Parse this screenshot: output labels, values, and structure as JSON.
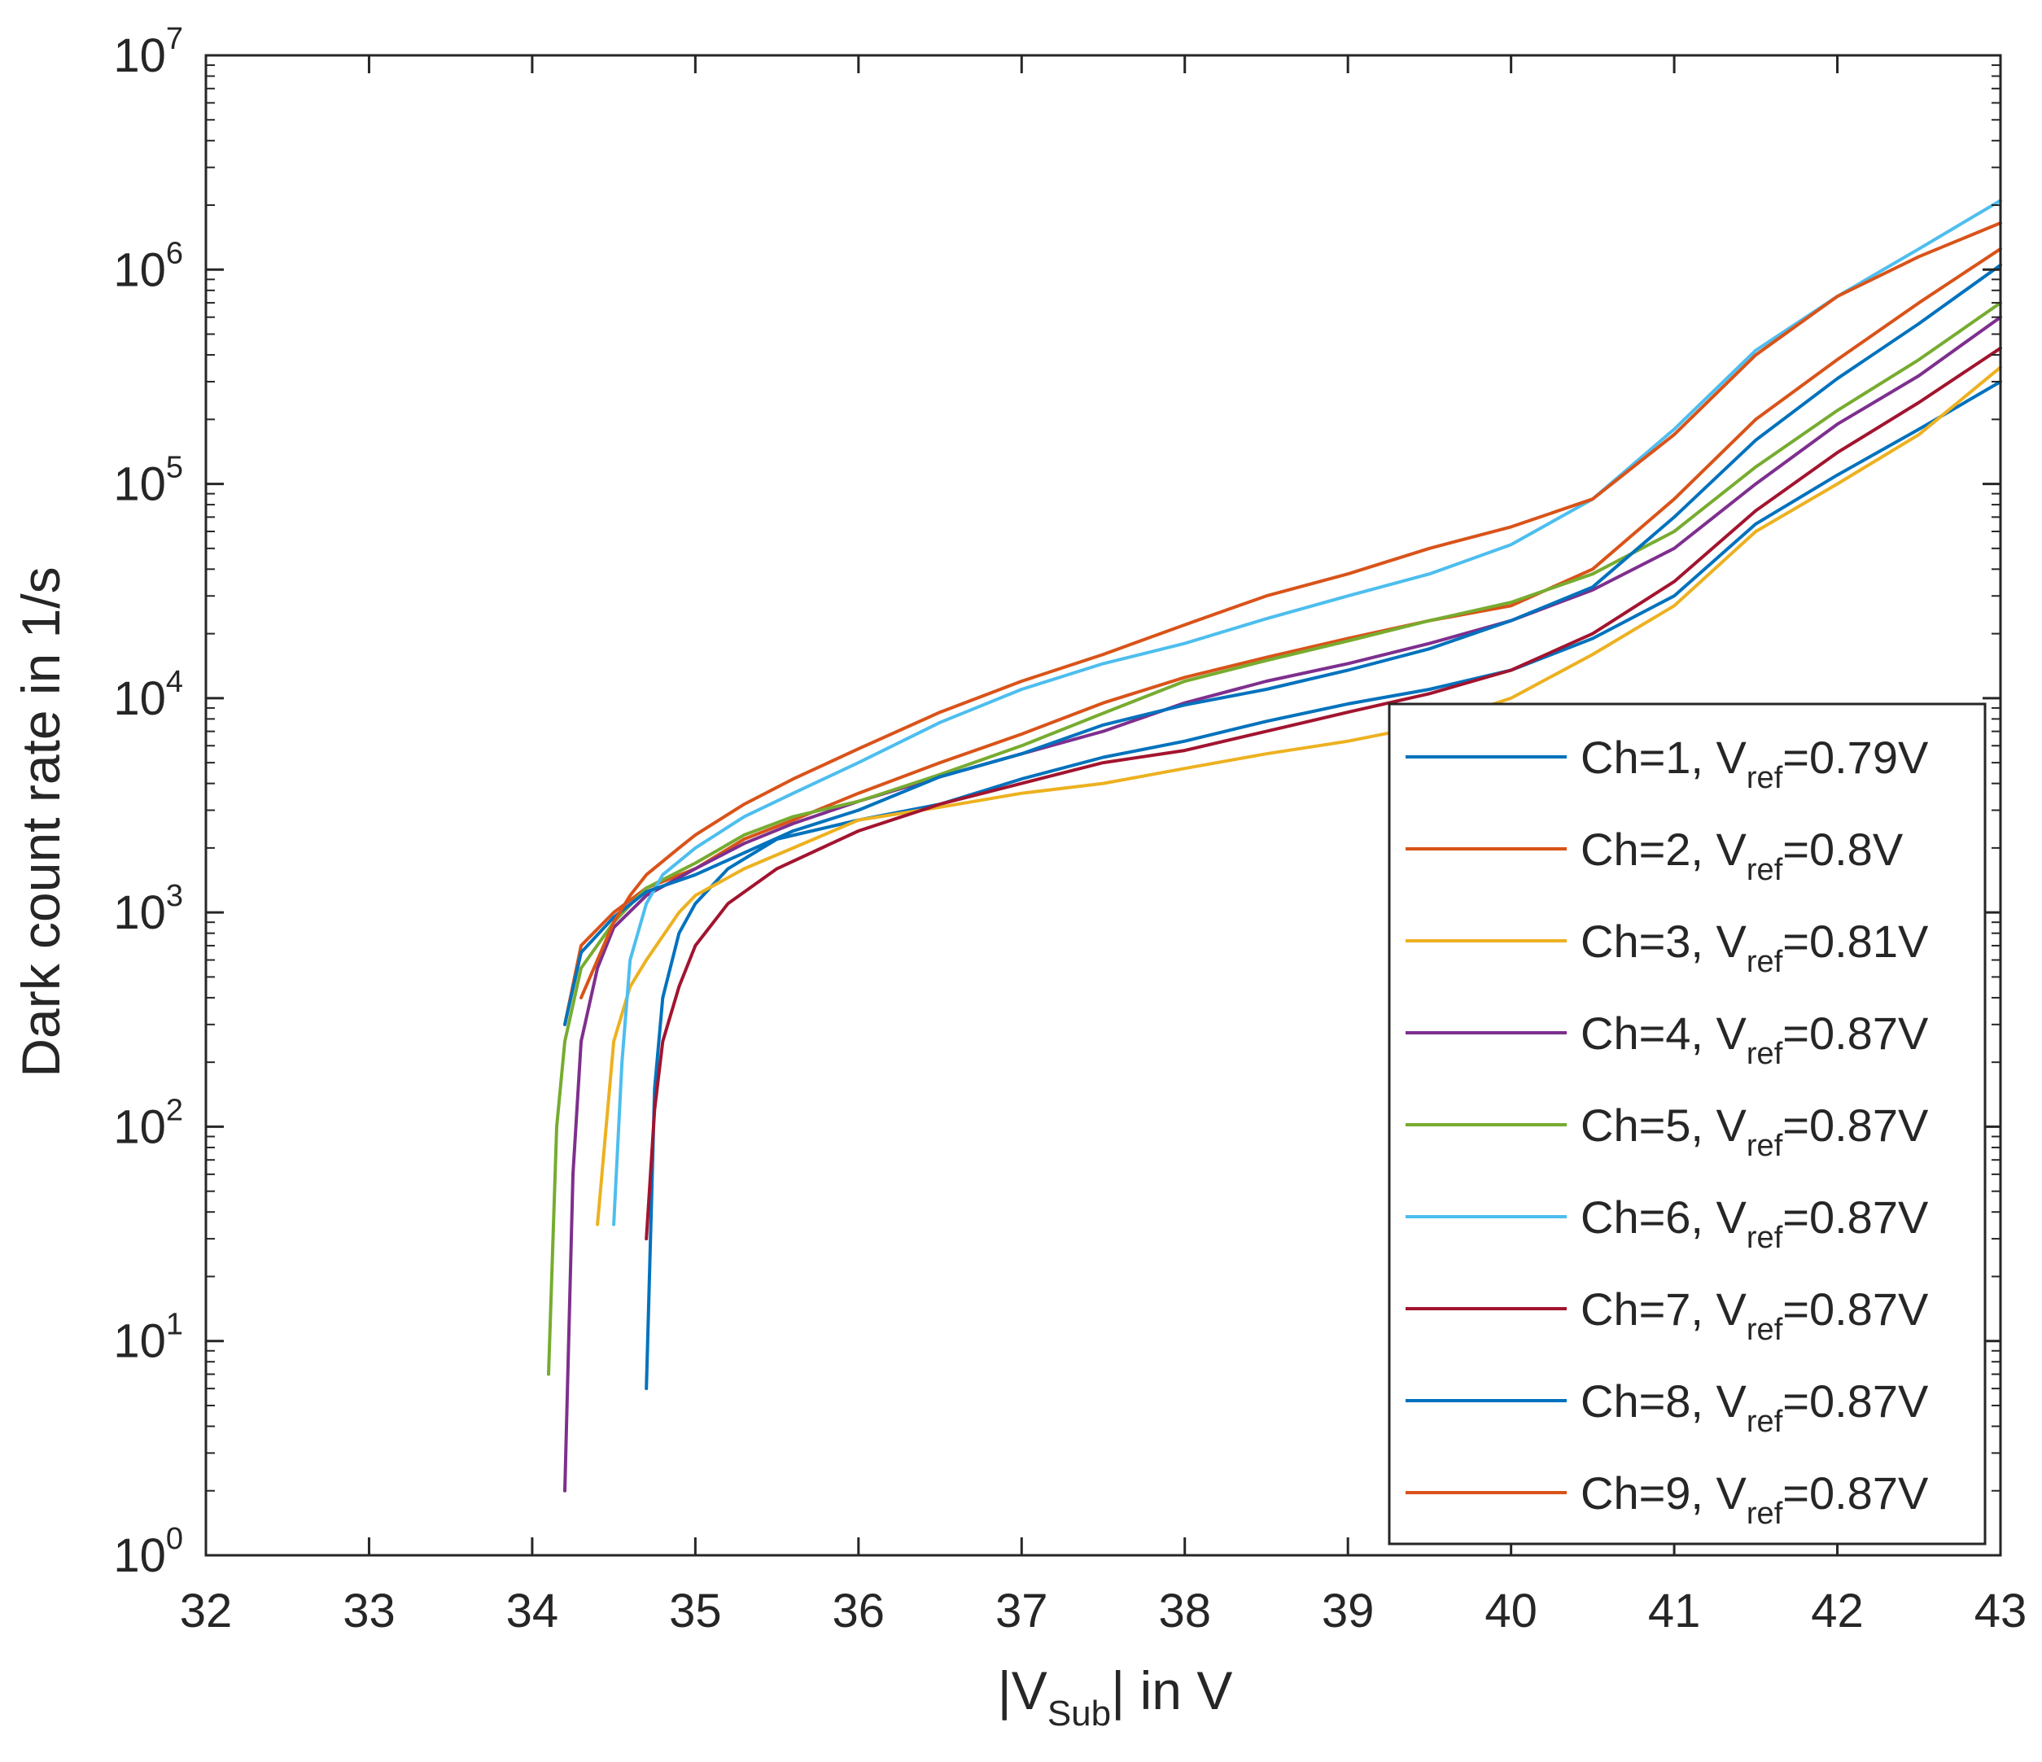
{
  "chart_data": {
    "type": "line",
    "title": "",
    "xlabel": {
      "prefix": "|V",
      "sub": "Sub",
      "suffix": "| in V"
    },
    "ylabel": "Dark count rate in 1/s",
    "xlim": [
      32,
      43
    ],
    "ylim": [
      1,
      10000000
    ],
    "yscale": "log",
    "x_ticks": [
      32,
      33,
      34,
      35,
      36,
      37,
      38,
      39,
      40,
      41,
      42,
      43
    ],
    "y_ticks": [
      {
        "value": 1,
        "base": "10",
        "exp": "0"
      },
      {
        "value": 10,
        "base": "10",
        "exp": "1"
      },
      {
        "value": 100,
        "base": "10",
        "exp": "2"
      },
      {
        "value": 1000,
        "base": "10",
        "exp": "3"
      },
      {
        "value": 10000,
        "base": "10",
        "exp": "4"
      },
      {
        "value": 100000,
        "base": "10",
        "exp": "5"
      },
      {
        "value": 1000000,
        "base": "10",
        "exp": "6"
      },
      {
        "value": 10000000,
        "base": "10",
        "exp": "7"
      }
    ],
    "grid": false,
    "legend_position": "bottom-right",
    "series": [
      {
        "name": "Ch=1",
        "legend_prefix": "Ch=1, V",
        "legend_sub": "ref",
        "legend_suffix": "=0.79V",
        "color": "#0072BD",
        "x": [
          34.7,
          34.75,
          34.8,
          34.9,
          35.0,
          35.2,
          35.5,
          36.0,
          36.5,
          37.0,
          37.5,
          38.0,
          38.5,
          39.0,
          39.5,
          40.0,
          40.5,
          41.0,
          41.5,
          42.0,
          42.5,
          43.0
        ],
        "y": [
          6,
          150,
          400,
          800,
          1100,
          1600,
          2200,
          2700,
          3200,
          4200,
          5300,
          6300,
          7800,
          9400,
          11000,
          13500,
          19000,
          30000,
          65000,
          110000,
          180000,
          300000
        ]
      },
      {
        "name": "Ch=2",
        "legend_prefix": "Ch=2, V",
        "legend_sub": "ref",
        "legend_suffix": "=0.8V",
        "color": "#D95319",
        "x": [
          34.2,
          34.3,
          34.5,
          34.7,
          35.0,
          35.3,
          35.6,
          36.0,
          36.5,
          37.0,
          37.5,
          38.0,
          38.5,
          39.0,
          39.5,
          40.0,
          40.5,
          41.0,
          41.5,
          42.0,
          42.5,
          43.0
        ],
        "y": [
          300,
          700,
          1000,
          1300,
          1600,
          2200,
          2700,
          3600,
          5000,
          6800,
          9500,
          12500,
          15500,
          19000,
          23000,
          27000,
          40000,
          85000,
          200000,
          380000,
          700000,
          1250000
        ]
      },
      {
        "name": "Ch=3",
        "legend_prefix": "Ch=3, V",
        "legend_sub": "ref",
        "legend_suffix": "=0.81V",
        "color": "#EDB120",
        "x": [
          34.4,
          34.5,
          34.6,
          34.7,
          34.9,
          35.0,
          35.3,
          35.6,
          36.0,
          36.5,
          37.0,
          37.5,
          38.0,
          38.5,
          39.0,
          39.5,
          40.0,
          40.5,
          41.0,
          41.5,
          42.0,
          42.5,
          43.0
        ],
        "y": [
          35,
          250,
          450,
          600,
          1000,
          1200,
          1600,
          2000,
          2700,
          3100,
          3600,
          4000,
          4700,
          5500,
          6300,
          7500,
          10000,
          16000,
          27000,
          60000,
          100000,
          170000,
          350000
        ]
      },
      {
        "name": "Ch=4",
        "legend_prefix": "Ch=4, V",
        "legend_sub": "ref",
        "legend_suffix": "=0.87V",
        "color": "#7E2F8E",
        "x": [
          34.2,
          34.25,
          34.3,
          34.4,
          34.5,
          34.7,
          35.0,
          35.3,
          35.6,
          36.0,
          36.5,
          37.0,
          37.5,
          38.0,
          38.5,
          39.0,
          39.5,
          40.0,
          40.5,
          41.0,
          41.5,
          42.0,
          42.5,
          43.0
        ],
        "y": [
          2,
          60,
          250,
          550,
          850,
          1200,
          1600,
          2100,
          2600,
          3300,
          4300,
          5500,
          7000,
          9500,
          12000,
          14500,
          18000,
          23000,
          32000,
          50000,
          100000,
          190000,
          320000,
          600000
        ]
      },
      {
        "name": "Ch=5",
        "legend_prefix": "Ch=5, V",
        "legend_sub": "ref",
        "legend_suffix": "=0.87V",
        "color": "#77AC30",
        "x": [
          34.1,
          34.15,
          34.2,
          34.3,
          34.5,
          34.7,
          35.0,
          35.3,
          35.6,
          36.0,
          36.5,
          37.0,
          37.5,
          38.0,
          38.5,
          39.0,
          39.5,
          40.0,
          40.5,
          41.0,
          41.5,
          42.0,
          42.5,
          43.0
        ],
        "y": [
          7,
          100,
          250,
          550,
          900,
          1300,
          1700,
          2300,
          2800,
          3300,
          4400,
          6000,
          8500,
          12000,
          15000,
          18500,
          23000,
          28000,
          38000,
          60000,
          120000,
          220000,
          380000,
          700000
        ]
      },
      {
        "name": "Ch=6",
        "legend_prefix": "Ch=6, V",
        "legend_sub": "ref",
        "legend_suffix": "=0.87V",
        "color": "#4DBEEE",
        "x": [
          34.5,
          34.55,
          34.6,
          34.7,
          34.8,
          35.0,
          35.3,
          35.6,
          36.0,
          36.5,
          37.0,
          37.5,
          38.0,
          38.5,
          39.0,
          39.5,
          40.0,
          40.5,
          41.0,
          41.5,
          42.0,
          42.5,
          43.0
        ],
        "y": [
          35,
          200,
          600,
          1100,
          1500,
          2000,
          2800,
          3600,
          5000,
          7700,
          11000,
          14500,
          18000,
          23500,
          30000,
          38000,
          52000,
          85000,
          180000,
          420000,
          750000,
          1250000,
          2100000
        ]
      },
      {
        "name": "Ch=7",
        "legend_prefix": "Ch=7, V",
        "legend_sub": "ref",
        "legend_suffix": "=0.87V",
        "color": "#A2142F",
        "x": [
          34.7,
          34.75,
          34.8,
          34.9,
          35.0,
          35.2,
          35.5,
          36.0,
          36.5,
          37.0,
          37.5,
          38.0,
          38.5,
          39.0,
          39.5,
          40.0,
          40.5,
          41.0,
          41.5,
          42.0,
          42.5,
          43.0
        ],
        "y": [
          30,
          120,
          250,
          450,
          700,
          1100,
          1600,
          2400,
          3200,
          4000,
          5000,
          5700,
          7000,
          8600,
          10500,
          13500,
          20000,
          35000,
          75000,
          140000,
          240000,
          430000
        ]
      },
      {
        "name": "Ch=8",
        "legend_prefix": "Ch=8, V",
        "legend_sub": "ref",
        "legend_suffix": "=0.87V",
        "color": "#0072BD",
        "x": [
          34.2,
          34.3,
          34.5,
          34.7,
          35.0,
          35.3,
          35.6,
          36.0,
          36.5,
          37.0,
          37.5,
          38.0,
          38.5,
          39.0,
          39.5,
          40.0,
          40.5,
          41.0,
          41.5,
          42.0,
          42.5,
          43.0
        ],
        "y": [
          300,
          650,
          950,
          1250,
          1500,
          1900,
          2400,
          3000,
          4300,
          5500,
          7500,
          9300,
          11000,
          13500,
          17000,
          23000,
          33000,
          70000,
          160000,
          310000,
          560000,
          1050000
        ]
      },
      {
        "name": "Ch=9",
        "legend_prefix": "Ch=9, V",
        "legend_sub": "ref",
        "legend_suffix": "=0.87V",
        "color": "#D95319",
        "x": [
          34.3,
          34.4,
          34.5,
          34.6,
          34.7,
          34.9,
          35.0,
          35.3,
          35.6,
          36.0,
          36.5,
          37.0,
          37.5,
          38.0,
          38.5,
          39.0,
          39.5,
          40.0,
          40.5,
          41.0,
          41.5,
          42.0,
          42.5,
          43.0
        ],
        "y": [
          400,
          600,
          900,
          1200,
          1500,
          2000,
          2300,
          3200,
          4200,
          5800,
          8600,
          12000,
          16000,
          22000,
          30000,
          38000,
          50000,
          63000,
          85000,
          170000,
          400000,
          750000,
          1150000,
          1650000
        ]
      }
    ]
  }
}
